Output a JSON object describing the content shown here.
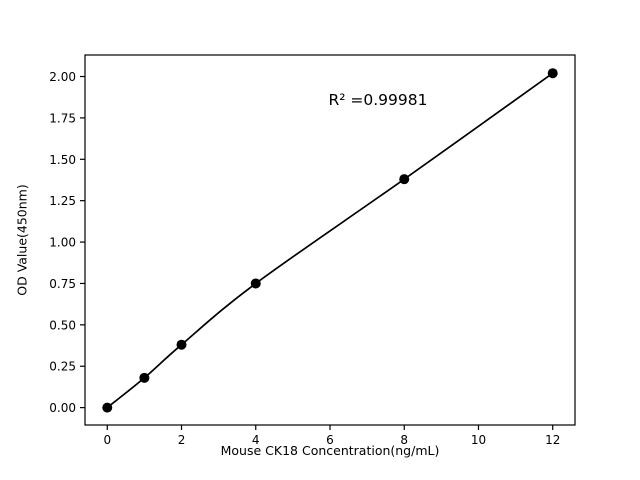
{
  "chart_data": {
    "type": "scatter",
    "x": [
      0,
      1,
      2,
      4,
      8,
      12
    ],
    "y": [
      0.0,
      0.18,
      0.38,
      0.75,
      1.38,
      2.02
    ],
    "title": "",
    "xlabel": "Mouse CK18 Concentration(ng/mL)",
    "ylabel": "OD Value(450nm)",
    "annotation": "R² =0.99981",
    "xlim": [
      -0.6,
      12.6
    ],
    "ylim": [
      -0.105,
      2.13
    ],
    "xticks": [
      0,
      2,
      4,
      6,
      8,
      10,
      12
    ],
    "yticks": [
      0.0,
      0.25,
      0.5,
      0.75,
      1.0,
      1.25,
      1.5,
      1.75,
      2.0
    ],
    "grid": false,
    "legend_position": "none",
    "line_color": "#000000",
    "point_color": "#000000",
    "fit_style": "smooth-curve-through-points"
  }
}
